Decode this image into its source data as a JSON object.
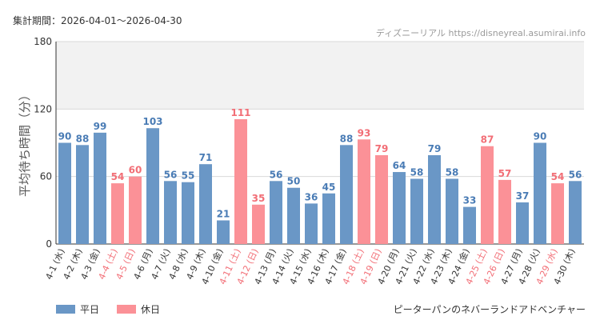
{
  "period_label": "集計期間：2026-04-01～2026-04-30",
  "source": "ディズニーリアル https://disneyreal.asumirai.info",
  "attraction": "ピーターパンのネバーランドアドベンチャー",
  "colors": {
    "weekday": "#6a97c6",
    "holiday": "#fb9197",
    "weekday_label": "#4a7cb5",
    "holiday_label": "#f26e76",
    "band": "#f2f2f2",
    "grid": "#d9d9d9",
    "axis": "#333333"
  },
  "chart_data": {
    "type": "bar",
    "ylabel": "平均待ち時間（分）",
    "ylim": [
      0,
      180
    ],
    "yticks": [
      0,
      60,
      120,
      180
    ],
    "shaded_band": [
      120,
      180
    ],
    "legend": [
      {
        "name": "平日",
        "color": "#6a97c6"
      },
      {
        "name": "休日",
        "color": "#fb9197"
      }
    ],
    "categories": [
      "4-1 (水)",
      "4-2 (木)",
      "4-3 (金)",
      "4-4 (土)",
      "4-5 (日)",
      "4-6 (月)",
      "4-7 (火)",
      "4-8 (水)",
      "4-9 (木)",
      "4-10 (金)",
      "4-11 (土)",
      "4-12 (日)",
      "4-13 (月)",
      "4-14 (火)",
      "4-15 (水)",
      "4-16 (木)",
      "4-17 (金)",
      "4-18 (土)",
      "4-19 (日)",
      "4-20 (月)",
      "4-21 (火)",
      "4-22 (水)",
      "4-23 (木)",
      "4-24 (金)",
      "4-25 (土)",
      "4-26 (日)",
      "4-27 (月)",
      "4-28 (火)",
      "4-29 (水)",
      "4-30 (木)"
    ],
    "values": [
      90,
      88,
      99,
      54,
      60,
      103,
      56,
      55,
      71,
      21,
      111,
      35,
      56,
      50,
      36,
      45,
      88,
      93,
      79,
      64,
      58,
      79,
      58,
      33,
      87,
      57,
      37,
      90,
      54,
      56
    ],
    "holiday": [
      false,
      false,
      false,
      true,
      true,
      false,
      false,
      false,
      false,
      false,
      true,
      true,
      false,
      false,
      false,
      false,
      false,
      true,
      true,
      false,
      false,
      false,
      false,
      false,
      true,
      true,
      false,
      false,
      true,
      false
    ]
  }
}
